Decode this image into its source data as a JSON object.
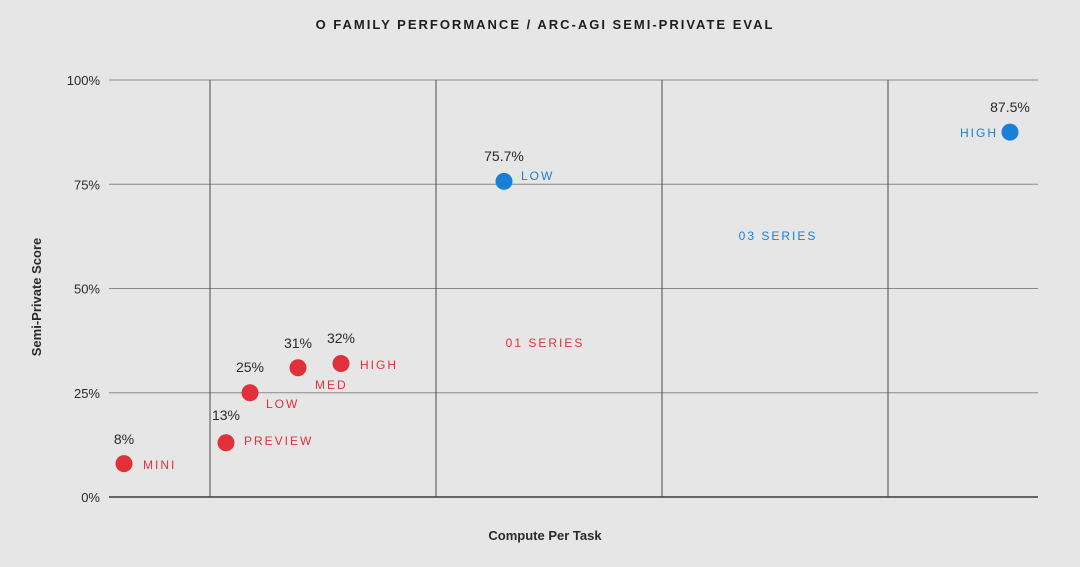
{
  "chart_data": {
    "type": "scatter",
    "title": "O FAMILY PERFORMANCE / ARC-AGI SEMI-PRIVATE EVAL",
    "xlabel": "Compute Per Task",
    "ylabel": "Semi-Private Score",
    "ylim": [
      0,
      100
    ],
    "yticks": [
      {
        "value": 0,
        "label": "0%"
      },
      {
        "value": 25,
        "label": "25%"
      },
      {
        "value": 50,
        "label": "50%"
      },
      {
        "value": 75,
        "label": "75%"
      },
      {
        "value": 100,
        "label": "100%"
      }
    ],
    "grid": true,
    "series": [
      {
        "color": "#e0313b",
        "points": [
          {
            "label": "MINI",
            "y": 8,
            "value_label": "8%"
          },
          {
            "label": "PREVIEW",
            "y": 13,
            "value_label": "13%"
          },
          {
            "label": "LOW",
            "y": 25,
            "value_label": "25%"
          },
          {
            "label": "MED",
            "y": 31,
            "value_label": "31%"
          },
          {
            "label": "HIGH",
            "y": 32,
            "value_label": "32%"
          }
        ]
      },
      {
        "color": "#1a7fd9",
        "points": [
          {
            "label": "LOW",
            "y": 75.7,
            "value_label": "75.7%"
          },
          {
            "label": "HIGH",
            "y": 87.5,
            "value_label": "87.5%"
          }
        ]
      }
    ],
    "annotations": [
      {
        "text": "01 SERIES",
        "color": "#e0313b"
      },
      {
        "text": "03 SERIES",
        "color": "#1a7fd9"
      }
    ]
  }
}
